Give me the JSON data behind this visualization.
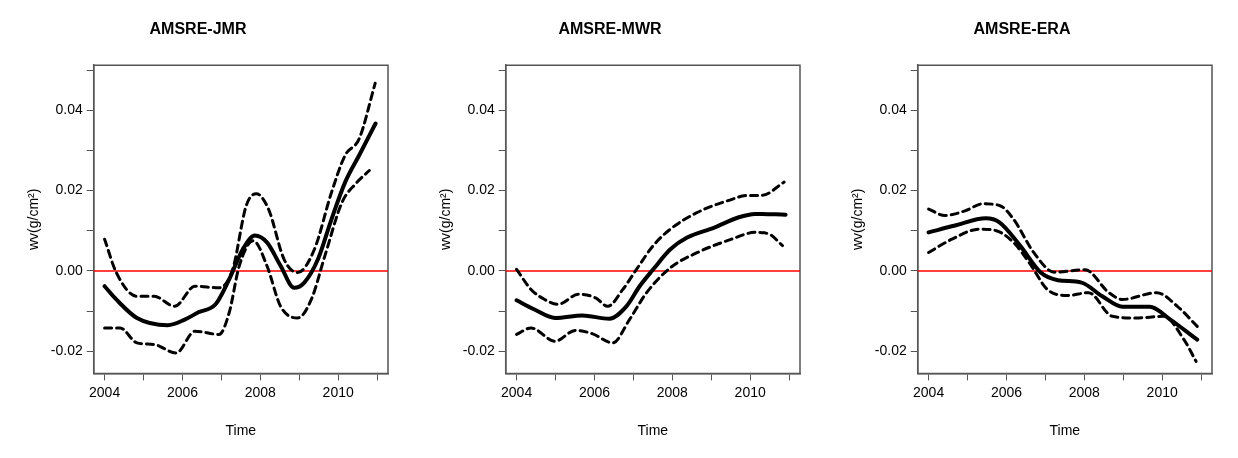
{
  "chart_data": [
    {
      "type": "line",
      "title": "AMSRE-JMR",
      "xlabel": "Time",
      "ylabel": "wv(g/cm²)",
      "xlim": [
        2003.72,
        2011.28
      ],
      "ylim": [
        -0.0255,
        0.0512
      ],
      "xticks": [
        2004,
        {
          "value": 2005,
          "label": null
        },
        2006,
        {
          "value": 2007,
          "label": null
        },
        2008,
        {
          "value": 2009,
          "label": null
        },
        2010,
        {
          "value": 2011,
          "label": null
        }
      ],
      "yticks": [
        {
          "value": -0.02,
          "label": "-0.02"
        },
        {
          "value": -0.01,
          "label": null
        },
        {
          "value": 0,
          "label": "0.00"
        },
        {
          "value": 0.01,
          "label": null
        },
        {
          "value": 0.02,
          "label": "0.02"
        },
        {
          "value": 0.03,
          "label": null
        },
        {
          "value": 0.04,
          "label": "0.04"
        },
        {
          "value": 0.05,
          "label": null
        }
      ],
      "grid": false,
      "legend": false,
      "marker": "none",
      "ref_lines": [
        {
          "axis": "y",
          "value": 0,
          "color": "#ff0000"
        }
      ],
      "series": [
        {
          "color": "#000000",
          "line_style": "solid",
          "x": [
            2004.0,
            2004.3,
            2004.83,
            2005.62,
            2006.06,
            2006.41,
            2006.85,
            2007.2,
            2007.55,
            2007.86,
            2008.17,
            2008.52,
            2008.87,
            2009.13,
            2009.48,
            2009.83,
            2010.18,
            2010.54,
            2010.96
          ],
          "values": [
            -0.0038,
            -0.0071,
            -0.0117,
            -0.0135,
            -0.0121,
            -0.0103,
            -0.0083,
            -0.0021,
            0.0054,
            0.0088,
            0.0071,
            0.0013,
            -0.0042,
            -0.0029,
            0.0029,
            0.0129,
            0.0221,
            0.0288,
            0.0367
          ]
        },
        {
          "color": "#000000",
          "line_style": "dashed",
          "x": [
            2004.0,
            2004.3,
            2004.83,
            2005.27,
            2005.8,
            2006.32,
            2006.94,
            2007.29,
            2007.64,
            2007.9,
            2008.21,
            2008.61,
            2008.96,
            2009.39,
            2009.83,
            2010.18,
            2010.54,
            2010.95
          ],
          "values": [
            0.0079,
            -0.0004,
            -0.0063,
            -0.0063,
            -0.0088,
            -0.0038,
            -0.0042,
            0.0004,
            0.0163,
            0.0192,
            0.0154,
            0.0029,
            -0.0004,
            0.0054,
            0.0196,
            0.0288,
            0.0329,
            0.0467
          ]
        },
        {
          "color": "#000000",
          "line_style": "dashed",
          "x": [
            2004.0,
            2004.4,
            2004.83,
            2005.27,
            2005.84,
            2006.32,
            2006.94,
            2007.2,
            2007.46,
            2007.82,
            2008.17,
            2008.52,
            2008.96,
            2009.31,
            2009.66,
            2010.1,
            2010.45,
            2010.8
          ],
          "values": [
            -0.0142,
            -0.0142,
            -0.0179,
            -0.0183,
            -0.0204,
            -0.015,
            -0.0158,
            -0.0104,
            0.0013,
            0.0075,
            0.0013,
            -0.0088,
            -0.0117,
            -0.0071,
            0.0038,
            0.0171,
            0.0217,
            0.025
          ]
        }
      ]
    },
    {
      "type": "line",
      "title": "AMSRE-MWR",
      "xlabel": "Time",
      "ylabel": "wv(g/cm²)",
      "xlim": [
        2003.72,
        2011.28
      ],
      "ylim": [
        -0.0255,
        0.0512
      ],
      "xticks": [
        2004,
        {
          "value": 2005,
          "label": null
        },
        2006,
        {
          "value": 2007,
          "label": null
        },
        2008,
        {
          "value": 2009,
          "label": null
        },
        2010,
        {
          "value": 2011,
          "label": null
        }
      ],
      "yticks": [
        {
          "value": -0.02,
          "label": "-0.02"
        },
        {
          "value": -0.01,
          "label": null
        },
        {
          "value": 0,
          "label": "0.00"
        },
        {
          "value": 0.01,
          "label": null
        },
        {
          "value": 0.02,
          "label": "0.02"
        },
        {
          "value": 0.03,
          "label": null
        },
        {
          "value": 0.04,
          "label": "0.04"
        },
        {
          "value": 0.05,
          "label": null
        }
      ],
      "grid": false,
      "legend": false,
      "marker": "none",
      "ref_lines": [
        {
          "axis": "y",
          "value": 0,
          "color": "#ff0000"
        }
      ],
      "series": [
        {
          "color": "#000000",
          "line_style": "solid",
          "x": [
            2004.0,
            2004.46,
            2004.99,
            2005.69,
            2006.38,
            2006.82,
            2007.16,
            2007.51,
            2007.95,
            2008.38,
            2009.08,
            2009.69,
            2010.13,
            2010.91
          ],
          "values": [
            -0.0073,
            -0.0096,
            -0.0117,
            -0.0111,
            -0.0119,
            -0.0088,
            -0.0038,
            0.0004,
            0.0054,
            0.0083,
            0.0108,
            0.0133,
            0.0142,
            0.014
          ]
        },
        {
          "color": "#000000",
          "line_style": "dashed",
          "x": [
            2004.0,
            2004.37,
            2004.72,
            2005.07,
            2005.59,
            2006.03,
            2006.34,
            2006.73,
            2007.08,
            2007.51,
            2007.95,
            2008.65,
            2009.43,
            2009.95,
            2010.3,
            2010.87
          ],
          "values": [
            0.0004,
            -0.0046,
            -0.0071,
            -0.0083,
            -0.0058,
            -0.0067,
            -0.0088,
            -0.0046,
            0.0004,
            0.0063,
            0.0104,
            0.0146,
            0.0175,
            0.0188,
            0.0188,
            0.0221
          ]
        },
        {
          "color": "#000000",
          "line_style": "dashed",
          "x": [
            2004.0,
            2004.37,
            2004.99,
            2005.51,
            2005.94,
            2006.47,
            2006.9,
            2007.34,
            2007.95,
            2008.65,
            2009.52,
            2010.13,
            2010.48,
            2010.83
          ],
          "values": [
            -0.0158,
            -0.0142,
            -0.0175,
            -0.0148,
            -0.0156,
            -0.0179,
            -0.0121,
            -0.0054,
            0.0008,
            0.0046,
            0.0079,
            0.0096,
            0.0092,
            0.0063
          ]
        }
      ]
    },
    {
      "type": "line",
      "title": "AMSRE-ERA",
      "xlabel": "Time",
      "ylabel": "wv(g/cm²)",
      "xlim": [
        2003.72,
        2011.28
      ],
      "ylim": [
        -0.0255,
        0.0512
      ],
      "xticks": [
        2004,
        {
          "value": 2005,
          "label": null
        },
        2006,
        {
          "value": 2007,
          "label": null
        },
        2008,
        {
          "value": 2009,
          "label": null
        },
        2010,
        {
          "value": 2011,
          "label": null
        }
      ],
      "yticks": [
        {
          "value": -0.02,
          "label": "-0.02"
        },
        {
          "value": -0.01,
          "label": null
        },
        {
          "value": 0,
          "label": "0.00"
        },
        {
          "value": 0.01,
          "label": null
        },
        {
          "value": 0.02,
          "label": "0.02"
        },
        {
          "value": 0.03,
          "label": null
        },
        {
          "value": 0.04,
          "label": "0.04"
        },
        {
          "value": 0.05,
          "label": null
        }
      ],
      "grid": false,
      "legend": false,
      "marker": "none",
      "ref_lines": [
        {
          "axis": "y",
          "value": 0,
          "color": "#ff0000"
        }
      ],
      "series": [
        {
          "color": "#000000",
          "line_style": "solid",
          "x": [
            2004.0,
            2004.68,
            2005.47,
            2005.82,
            2006.35,
            2006.88,
            2007.32,
            2007.93,
            2008.46,
            2008.98,
            2009.68,
            2010.21,
            2010.56,
            2010.9
          ],
          "values": [
            0.0096,
            0.0113,
            0.0131,
            0.0121,
            0.0063,
            -0.0004,
            -0.0023,
            -0.0029,
            -0.0063,
            -0.0089,
            -0.0089,
            -0.0121,
            -0.0146,
            -0.0171
          ]
        },
        {
          "color": "#000000",
          "line_style": "dashed",
          "x": [
            2004.0,
            2004.42,
            2004.95,
            2005.39,
            2005.82,
            2006.18,
            2006.7,
            2007.23,
            2008.02,
            2008.63,
            2008.98,
            2009.86,
            2010.39,
            2010.9
          ],
          "values": [
            0.0154,
            0.0138,
            0.015,
            0.0167,
            0.0163,
            0.0129,
            0.0046,
            -0.0003,
            0.0003,
            -0.0054,
            -0.0071,
            -0.0054,
            -0.0088,
            -0.0138
          ]
        },
        {
          "color": "#000000",
          "line_style": "dashed",
          "x": [
            2004.0,
            2004.6,
            2005.3,
            2005.74,
            2006.18,
            2006.61,
            2007.05,
            2007.58,
            2008.11,
            2008.72,
            2009.33,
            2010.04,
            2010.56,
            2010.87
          ],
          "values": [
            0.0046,
            0.0079,
            0.0104,
            0.01,
            0.0071,
            0.0017,
            -0.0046,
            -0.0061,
            -0.0054,
            -0.0113,
            -0.0117,
            -0.0113,
            -0.0171,
            -0.0225
          ]
        }
      ]
    }
  ]
}
